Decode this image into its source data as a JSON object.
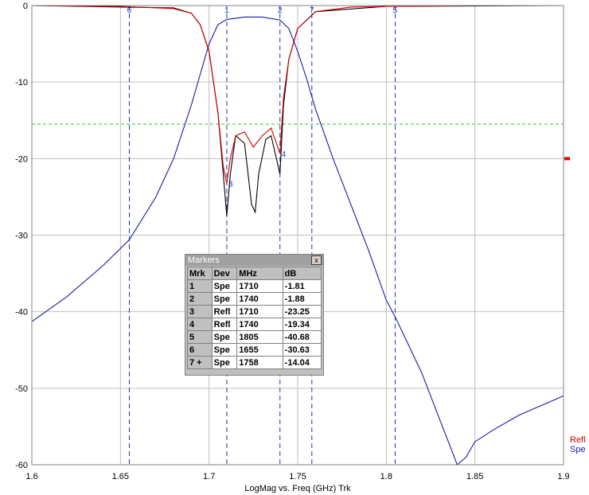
{
  "chart_data": {
    "type": "line",
    "xlabel": "LogMag vs. Freq (GHz)  Trk",
    "xlim": [
      1.6,
      1.9
    ],
    "ylim": [
      -60,
      0
    ],
    "xticks": [
      "1.6",
      "1.65",
      "1.7",
      "1.75",
      "1.8",
      "1.85",
      "1.9"
    ],
    "yticks": [
      "0",
      "-10",
      "-20",
      "-30",
      "-40",
      "-50",
      "-60"
    ],
    "grid": true,
    "reference_line_db": -15.5,
    "legend": [
      "Refl",
      "Spe"
    ],
    "colors": {
      "Refl": "#cc0000",
      "Spe": "#1a1aaa",
      "Refl_alt": "#000000",
      "reference": "#22cc22",
      "markers": "#2233bb"
    },
    "series": [
      {
        "name": "Spe",
        "x": [
          1.6,
          1.62,
          1.64,
          1.655,
          1.67,
          1.68,
          1.69,
          1.695,
          1.7,
          1.705,
          1.71,
          1.72,
          1.73,
          1.74,
          1.745,
          1.75,
          1.755,
          1.76,
          1.77,
          1.78,
          1.79,
          1.8,
          1.805,
          1.82,
          1.83,
          1.835,
          1.84,
          1.845,
          1.85,
          1.86,
          1.875,
          1.89,
          1.9
        ],
        "y": [
          -41.3,
          -38,
          -34,
          -30.6,
          -25,
          -20,
          -13,
          -9,
          -5,
          -2.5,
          -1.81,
          -1.5,
          -1.5,
          -1.88,
          -3,
          -6,
          -9.5,
          -13.5,
          -20,
          -26,
          -32,
          -38.5,
          -40.68,
          -48,
          -54,
          -57,
          -60,
          -59,
          -57,
          -55.5,
          -53.5,
          -52,
          -51
        ]
      },
      {
        "name": "Refl",
        "x": [
          1.6,
          1.65,
          1.68,
          1.69,
          1.695,
          1.7,
          1.705,
          1.708,
          1.71,
          1.712,
          1.715,
          1.72,
          1.725,
          1.73,
          1.735,
          1.738,
          1.74,
          1.742,
          1.745,
          1.75,
          1.76,
          1.78,
          1.8,
          1.85,
          1.9
        ],
        "y": [
          0,
          -0.1,
          -0.4,
          -1,
          -2.5,
          -6,
          -14,
          -21,
          -23.25,
          -20,
          -17,
          -16.5,
          -18.5,
          -17,
          -16,
          -18,
          -19.34,
          -12,
          -7,
          -3,
          -0.8,
          -0.2,
          -0.1,
          0,
          0
        ]
      },
      {
        "name": "Refl_alt",
        "x": [
          1.6,
          1.68,
          1.69,
          1.695,
          1.7,
          1.705,
          1.708,
          1.71,
          1.712,
          1.715,
          1.72,
          1.724,
          1.726,
          1.728,
          1.732,
          1.735,
          1.738,
          1.74,
          1.742,
          1.745,
          1.75,
          1.76,
          1.8,
          1.9
        ],
        "y": [
          0,
          -0.3,
          -1,
          -2.5,
          -6,
          -14,
          -22,
          -27.5,
          -22,
          -17,
          -18,
          -26,
          -27,
          -22,
          -17.5,
          -17,
          -20,
          -22,
          -13,
          -7,
          -3,
          -0.8,
          -0.1,
          0
        ]
      }
    ],
    "markers": [
      {
        "mrk": "1",
        "dev": "Spe",
        "mhz": "1710",
        "db": "-1.81",
        "label": "1",
        "x": 1.71,
        "y": -1.81
      },
      {
        "mrk": "2",
        "dev": "Spe",
        "mhz": "1740",
        "db": "-1.88",
        "label": "2",
        "x": 1.74,
        "y": -1.88
      },
      {
        "mrk": "3",
        "dev": "Refl",
        "mhz": "1710",
        "db": "-23.25",
        "label": "3",
        "x": 1.71,
        "y": -23.25
      },
      {
        "mrk": "4",
        "dev": "Refl",
        "mhz": "1740",
        "db": "-19.34",
        "label": "4",
        "x": 1.74,
        "y": -19.34
      },
      {
        "mrk": "5",
        "dev": "Spe",
        "mhz": "1805",
        "db": "-40.68",
        "label": "5",
        "x": 1.805,
        "y": -40.68
      },
      {
        "mrk": "6",
        "dev": "Spe",
        "mhz": "1655",
        "db": "-30.63",
        "label": "6",
        "x": 1.655,
        "y": -30.63
      },
      {
        "mrk": "7 +",
        "dev": "Spe",
        "mhz": "1758",
        "db": "-14.04",
        "label": "7",
        "x": 1.758,
        "y": -14.04
      }
    ]
  },
  "markers_window": {
    "title": "Markers",
    "close_label": "x",
    "headers": [
      "Mrk",
      "Dev",
      "MHz",
      "dB"
    ]
  }
}
